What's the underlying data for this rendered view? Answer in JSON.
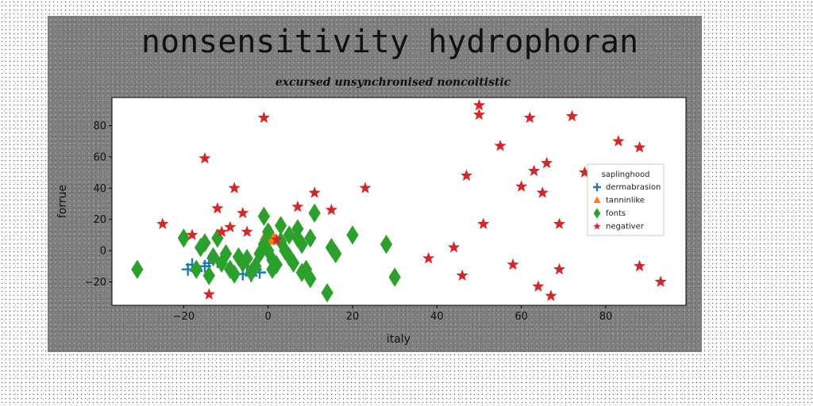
{
  "chart_data": {
    "type": "scatter",
    "title": "nonsensitivity hydrophoran",
    "subtitle": "excursed unsynchronised noncoitistic",
    "xlabel": "italy",
    "ylabel": "forrue",
    "xlim": [
      -37,
      99
    ],
    "ylim": [
      -35,
      98
    ],
    "xticks": [
      -20,
      0,
      20,
      40,
      60,
      80
    ],
    "yticks": [
      -20,
      0,
      20,
      40,
      60,
      80
    ],
    "grid": false,
    "legend": {
      "title": "saplinghood",
      "placement": "right"
    },
    "series": [
      {
        "name": "dermabrasion",
        "marker": "plus",
        "color": "#1f77b4",
        "points": [
          [
            -19,
            -12
          ],
          [
            -18,
            -9
          ],
          [
            -17,
            -13
          ],
          [
            -15,
            -10
          ],
          [
            -14,
            -8
          ],
          [
            -13,
            -5
          ],
          [
            -12,
            -7
          ],
          [
            -11,
            -6
          ],
          [
            -6,
            -15
          ],
          [
            -5,
            -10
          ],
          [
            -4,
            -16
          ],
          [
            -3,
            -12
          ],
          [
            -2,
            -14
          ]
        ]
      },
      {
        "name": "tanninlike",
        "marker": "triangle",
        "color": "#ff7f0e",
        "points": [
          [
            0,
            8
          ],
          [
            0.5,
            12
          ],
          [
            -0.5,
            10
          ],
          [
            1,
            7
          ]
        ]
      },
      {
        "name": "fonts",
        "marker": "diamond",
        "color": "#2ca02c",
        "points": [
          [
            -31,
            -12
          ],
          [
            -20,
            8
          ],
          [
            -17,
            -12
          ],
          [
            -16,
            2
          ],
          [
            -15,
            5
          ],
          [
            -14,
            -16
          ],
          [
            -13,
            -4
          ],
          [
            -12,
            8
          ],
          [
            -11,
            -8
          ],
          [
            -10,
            -2
          ],
          [
            -9,
            -12
          ],
          [
            -8,
            -15
          ],
          [
            -7,
            -4
          ],
          [
            -6,
            -8
          ],
          [
            -5,
            -5
          ],
          [
            -4,
            -14
          ],
          [
            -3,
            -10
          ],
          [
            -2,
            -2
          ],
          [
            -1,
            22
          ],
          [
            -1,
            4
          ],
          [
            0,
            12
          ],
          [
            0,
            0
          ],
          [
            1,
            -6
          ],
          [
            1,
            -12
          ],
          [
            2,
            -9
          ],
          [
            3,
            16
          ],
          [
            3,
            6
          ],
          [
            4,
            0
          ],
          [
            5,
            -4
          ],
          [
            5,
            10
          ],
          [
            6,
            -8
          ],
          [
            7,
            14
          ],
          [
            7,
            8
          ],
          [
            8,
            -14
          ],
          [
            8,
            4
          ],
          [
            9,
            -12
          ],
          [
            10,
            -18
          ],
          [
            10,
            8
          ],
          [
            11,
            24
          ],
          [
            14,
            -27
          ],
          [
            15,
            2
          ],
          [
            16,
            -2
          ],
          [
            20,
            10
          ],
          [
            28,
            4
          ],
          [
            30,
            -17
          ]
        ]
      },
      {
        "name": "negativer",
        "marker": "star",
        "color": "#d62728",
        "points": [
          [
            -25,
            17
          ],
          [
            -18,
            10
          ],
          [
            -15,
            59
          ],
          [
            -14,
            -28
          ],
          [
            -12,
            27
          ],
          [
            -11,
            12
          ],
          [
            -9,
            15
          ],
          [
            -8,
            40
          ],
          [
            -6,
            24
          ],
          [
            -5,
            12
          ],
          [
            -1,
            85
          ],
          [
            2,
            7
          ],
          [
            7,
            28
          ],
          [
            11,
            37
          ],
          [
            15,
            26
          ],
          [
            23,
            40
          ],
          [
            38,
            -5
          ],
          [
            44,
            2
          ],
          [
            46,
            -16
          ],
          [
            47,
            48
          ],
          [
            50,
            93
          ],
          [
            50,
            87
          ],
          [
            51,
            17
          ],
          [
            55,
            67
          ],
          [
            58,
            -9
          ],
          [
            60,
            41
          ],
          [
            62,
            85
          ],
          [
            63,
            51
          ],
          [
            64,
            -23
          ],
          [
            65,
            37
          ],
          [
            66,
            56
          ],
          [
            67,
            -29
          ],
          [
            69,
            17
          ],
          [
            69,
            -12
          ],
          [
            72,
            86
          ],
          [
            75,
            50
          ],
          [
            83,
            70
          ],
          [
            88,
            66
          ],
          [
            88,
            -10
          ],
          [
            93,
            -20
          ]
        ]
      }
    ]
  }
}
